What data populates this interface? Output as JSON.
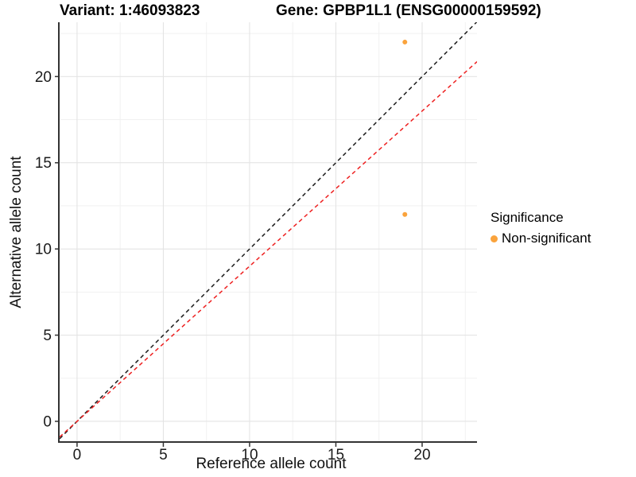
{
  "titles": {
    "variant": "Variant: 1:46093823",
    "gene": "Gene: GPBP1L1 (ENSG00000159592)"
  },
  "axes": {
    "x": {
      "label": "Reference allele count",
      "tick_labels": [
        "0",
        "5",
        "10",
        "15",
        "20"
      ],
      "tick_values": [
        0,
        5,
        10,
        15,
        20
      ],
      "minor_ticks": [
        2.5,
        7.5,
        12.5,
        17.5,
        22.5
      ],
      "range": [
        -1.01,
        23.18
      ]
    },
    "y": {
      "label": "Alternative allele count",
      "tick_labels": [
        "0",
        "5",
        "10",
        "15",
        "20"
      ],
      "tick_values": [
        0,
        5,
        10,
        15,
        20
      ],
      "minor_ticks": [
        2.5,
        7.5,
        12.5,
        17.5,
        22.5
      ],
      "range": [
        -1.2,
        23.15
      ]
    }
  },
  "legend": {
    "title": "Significance",
    "items": [
      {
        "label": "Non-significant",
        "color": "#FAA33C"
      }
    ]
  },
  "chart_data": {
    "type": "scatter",
    "title": "Variant: 1:46093823 | Gene: GPBP1L1 (ENSG00000159592)",
    "xlabel": "Reference allele count",
    "ylabel": "Alternative allele count",
    "xlim": [
      -1.01,
      23.18
    ],
    "ylim": [
      -1.2,
      23.15
    ],
    "grid": "major+minor",
    "legend_position": "right",
    "points": [
      {
        "x": 19,
        "y": 22,
        "series": "Non-significant",
        "color": "#FAA33C"
      },
      {
        "x": 19,
        "y": 12,
        "series": "Non-significant",
        "color": "#FAA33C"
      }
    ],
    "lines": [
      {
        "name": "identity-line",
        "slope": 1,
        "intercept": 0,
        "color": "#1A1A1A",
        "style": "dashed"
      },
      {
        "name": "expected-ratio-line",
        "slope": 0.9,
        "intercept": 0,
        "color": "#EE2020",
        "style": "dashed"
      }
    ]
  },
  "colors": {
    "grid_major": "#E4E4E4",
    "grid_minor": "#F1F1F1",
    "axis_line": "#333333",
    "tick_text": "#1A1A1A"
  }
}
